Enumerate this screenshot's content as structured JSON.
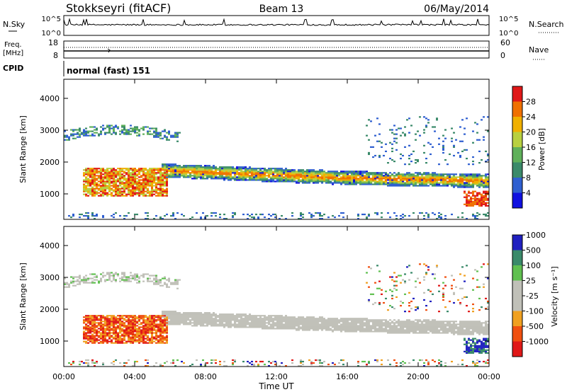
{
  "header": {
    "station": "Stokkseyri (fitACF)",
    "beam": "Beam 13",
    "date": "06/May/2014"
  },
  "panels": {
    "nsky": {
      "label": "N.Sky",
      "right_label": "N.Search",
      "left_ticks": [
        "10^5",
        "10^0"
      ],
      "right_ticks": [
        "10^5",
        "10^0"
      ]
    },
    "freq": {
      "label_line1": "Freq.",
      "label_line2": "[MHz]",
      "left_ticks": [
        "18",
        "8"
      ],
      "right_label": "Nave",
      "right_ticks": [
        "60",
        "0"
      ]
    },
    "cpid": {
      "label": "CPID",
      "value": "normal (fast) 151"
    }
  },
  "colors": {
    "power": [
      "#1010e0",
      "#2f5fd0",
      "#3a8a6a",
      "#5fb05a",
      "#b8d040",
      "#f0b000",
      "#f07000",
      "#e01818"
    ],
    "velocity": [
      "#e01818",
      "#f05010",
      "#f0a020",
      "#c0c0b8",
      "#c0c0b8",
      "#60c050",
      "#3a8a6a",
      "#2020c0"
    ]
  },
  "chart_data": [
    {
      "type": "heatmap",
      "name": "power",
      "ylabel": "Slant Range [km]",
      "yticks": [
        "1000",
        "2000",
        "3000",
        "4000"
      ],
      "ylim": [
        200,
        4600
      ],
      "colorbar": {
        "label": "Power [dB]",
        "ticks": [
          "4",
          "8",
          "12",
          "16",
          "20",
          "24",
          "28"
        ]
      }
    },
    {
      "type": "heatmap",
      "name": "velocity",
      "ylabel": "Slant Range [km]",
      "yticks": [
        "1000",
        "2000",
        "3000",
        "4000"
      ],
      "ylim": [
        200,
        4600
      ],
      "colorbar": {
        "label": "Velocity [m s⁻¹]",
        "ticks": [
          "-1000",
          "-500",
          "-100",
          "-25",
          "25",
          "100",
          "500",
          "1000"
        ]
      }
    }
  ],
  "xaxis": {
    "label": "Time UT",
    "ticks": [
      "00:00",
      "04:00",
      "08:00",
      "12:00",
      "16:00",
      "20:00",
      "00:00"
    ],
    "xlim_hours": [
      0,
      24
    ]
  }
}
